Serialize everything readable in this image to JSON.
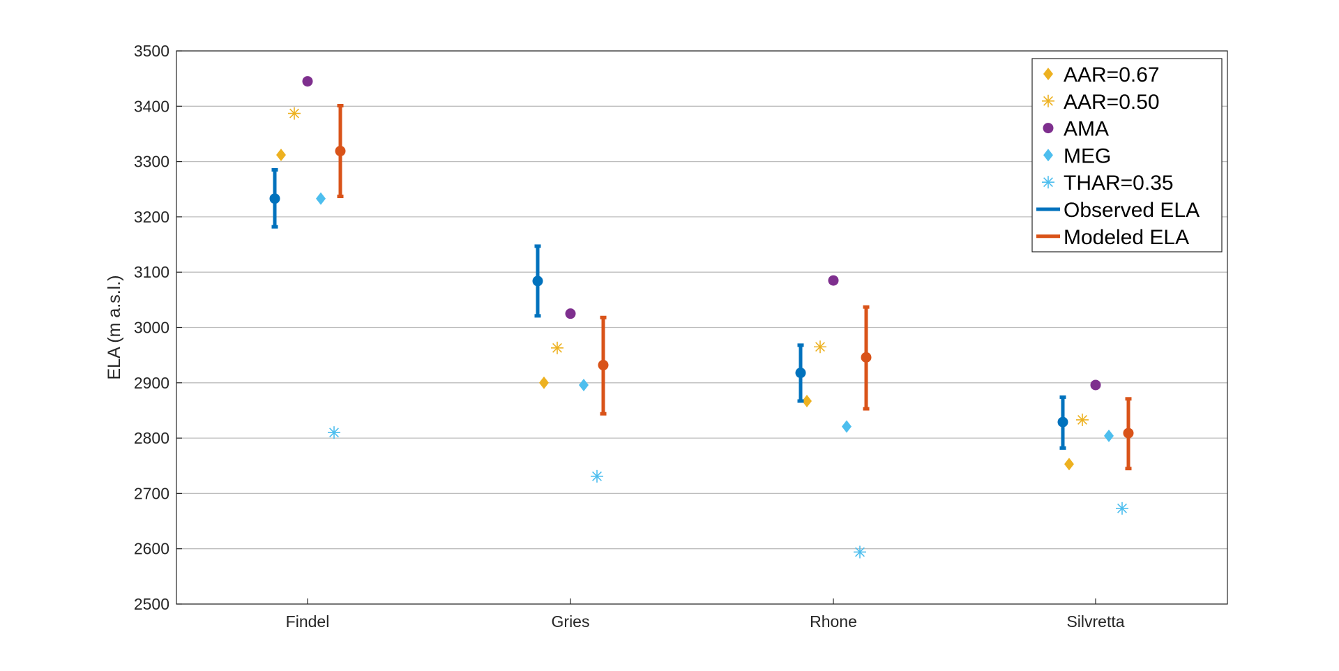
{
  "chart_data": {
    "type": "scatter",
    "title": "",
    "xlabel": "",
    "ylabel": "ELA (m a.s.l.)",
    "categories": [
      "Findel",
      "Gries",
      "Rhone",
      "Silvretta"
    ],
    "ylim": [
      2500,
      3500
    ],
    "yticks": [
      "2500",
      "2600",
      "2700",
      "2800",
      "2900",
      "3000",
      "3100",
      "3200",
      "3300",
      "3400",
      "3500"
    ],
    "grid": "horizontal",
    "legend_position": "top-right",
    "series": [
      {
        "name": "AAR=0.67",
        "marker": "diamond",
        "color": "#EDB120",
        "values": [
          3312,
          2900,
          2867,
          2753
        ]
      },
      {
        "name": "AAR=0.50",
        "marker": "asterisk",
        "color": "#EDB120",
        "values": [
          3387,
          2963,
          2965,
          2833
        ]
      },
      {
        "name": "AMA",
        "marker": "circle",
        "color": "#7E2F8E",
        "values": [
          3445,
          3025,
          3085,
          2896
        ]
      },
      {
        "name": "MEG",
        "marker": "diamond",
        "color": "#4DBEEE",
        "values": [
          3233,
          2896,
          2821,
          2804
        ]
      },
      {
        "name": "THAR=0.35",
        "marker": "asterisk",
        "color": "#4DBEEE",
        "values": [
          2810,
          2731,
          2594,
          2673
        ]
      },
      {
        "name": "Observed ELA",
        "marker": "errorbar",
        "color": "#0072BD",
        "values": [
          3233,
          3084,
          2918,
          2829
        ],
        "lower": [
          3182,
          3021,
          2867,
          2782
        ],
        "upper": [
          3285,
          3147,
          2968,
          2874
        ]
      },
      {
        "name": "Modeled ELA",
        "marker": "errorbar",
        "color": "#D95319",
        "values": [
          3319,
          2932,
          2946,
          2809
        ],
        "lower": [
          3237,
          2844,
          2853,
          2745
        ],
        "upper": [
          3401,
          3018,
          3037,
          2871
        ]
      }
    ]
  }
}
